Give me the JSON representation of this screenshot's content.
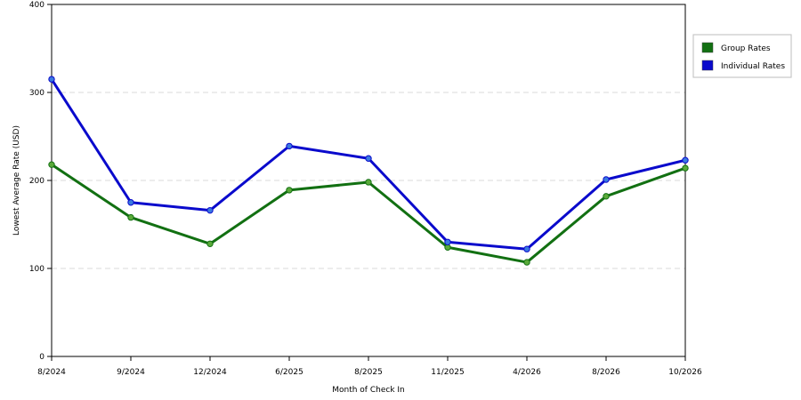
{
  "chart_data": {
    "type": "line",
    "xlabel": "Month of Check In",
    "ylabel": "Lowest Average Rate (USD)",
    "ylim": [
      0,
      400
    ],
    "yticks": [
      "0",
      "100",
      "200",
      "300",
      "400"
    ],
    "categories": [
      "8/2024",
      "9/2024",
      "12/2024",
      "6/2025",
      "8/2025",
      "11/2025",
      "4/2026",
      "8/2026",
      "10/2026"
    ],
    "grid": true,
    "legend_position": "right",
    "series": [
      {
        "name": "Group Rates",
        "color": "#127012",
        "marker_color": "#5aaa3a",
        "values": [
          218,
          158,
          128,
          189,
          198,
          124,
          107,
          182,
          214
        ]
      },
      {
        "name": "Individual Rates",
        "color": "#0a0acc",
        "marker_color": "#3a7ae0",
        "values": [
          315,
          175,
          166,
          239,
          225,
          130,
          122,
          201,
          223
        ]
      }
    ]
  }
}
